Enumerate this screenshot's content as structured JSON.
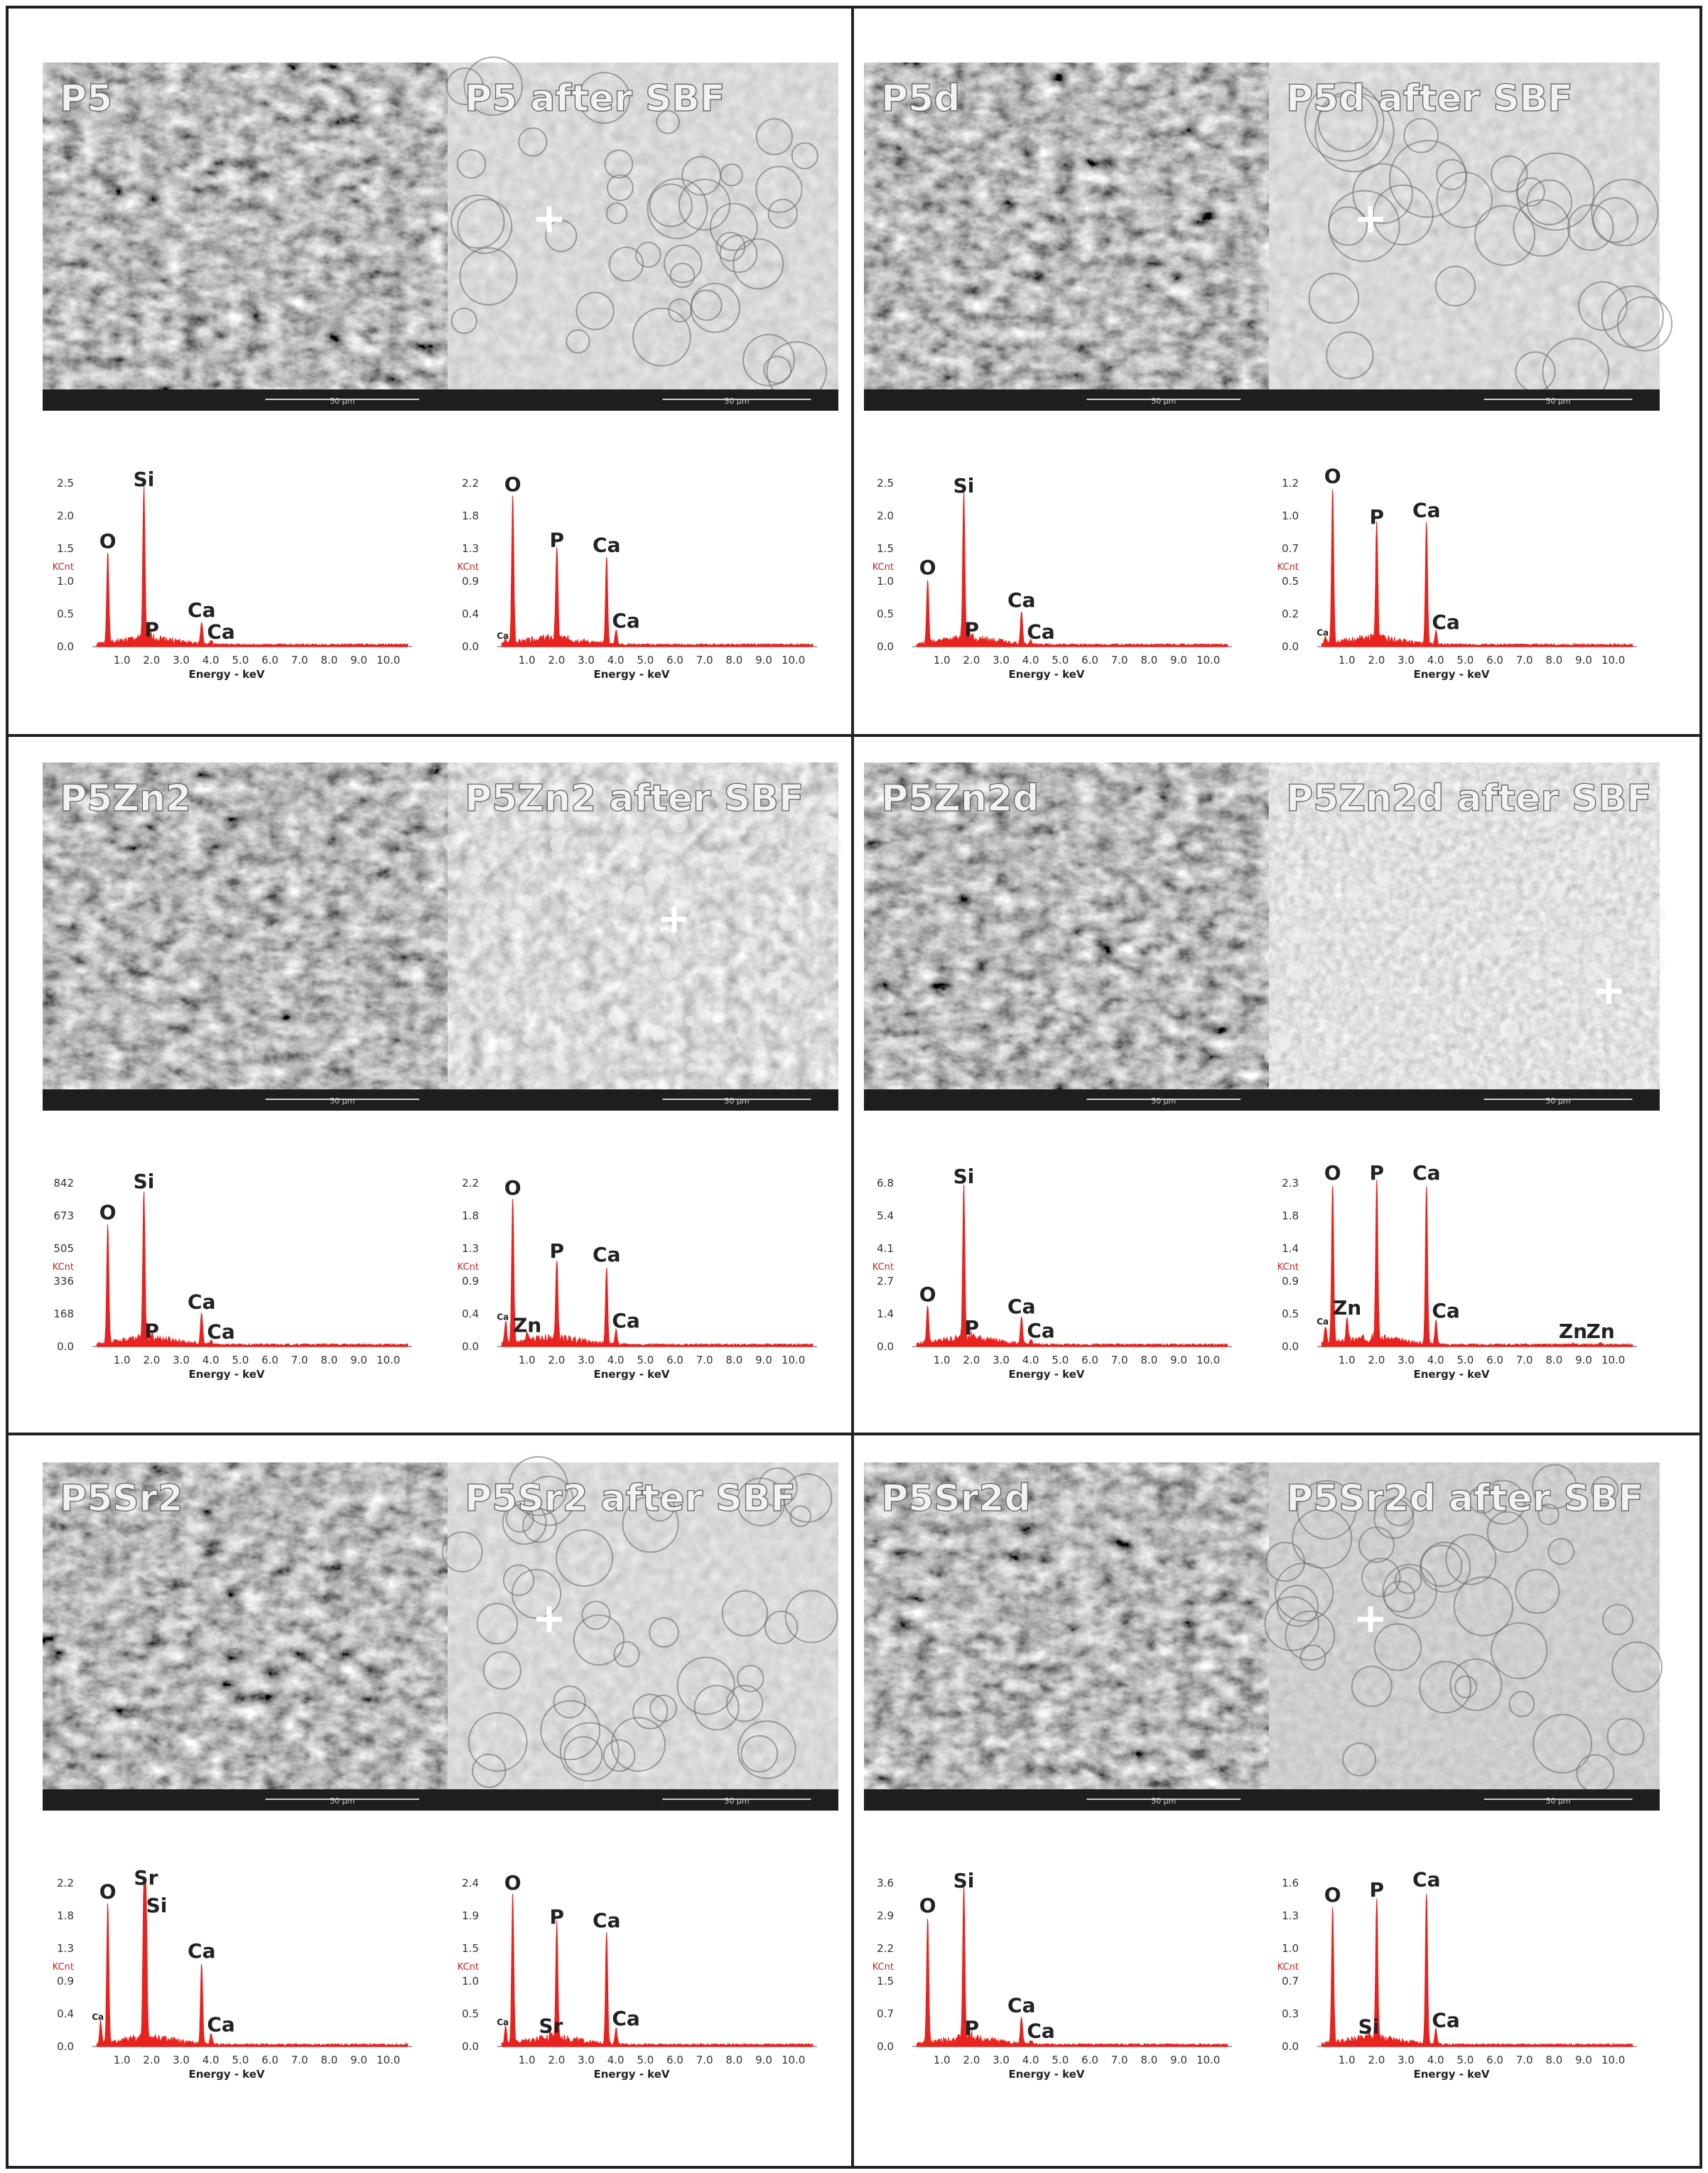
{
  "colors": {
    "spectrum": "#e8231f",
    "kcnt": "#d42020",
    "sem_label": "#f2f2f2",
    "scalebar_bg": "#1e1e1e",
    "frame": "#222222"
  },
  "scale_bar_label": "50 μm",
  "axis": {
    "xlabel": "Energy - keV",
    "ylabel": "KCnt",
    "x_ticks": [
      "1.0",
      "2.0",
      "3.0",
      "4.0",
      "5.0",
      "6.0",
      "7.0",
      "8.0",
      "9.0",
      "10.0"
    ]
  },
  "sem_images": [
    {
      "label": "P5",
      "texture": "rough",
      "plus": false
    },
    {
      "label": "P5 after SBF",
      "texture": "cells",
      "plus": true
    },
    {
      "label": "P5d",
      "texture": "rough",
      "plus": false
    },
    {
      "label": "P5d after SBF",
      "texture": "bigcells",
      "plus": true
    },
    {
      "label": "P5Zn2",
      "texture": "rough",
      "plus": false
    },
    {
      "label": "P5Zn2 after SBF",
      "texture": "bubbly",
      "plus": true
    },
    {
      "label": "P5Zn2d",
      "texture": "rough",
      "plus": false
    },
    {
      "label": "P5Zn2d after SBF",
      "texture": "spotted",
      "plus": true
    },
    {
      "label": "P5Sr2",
      "texture": "rough",
      "plus": false
    },
    {
      "label": "P5Sr2 after SBF",
      "texture": "cells",
      "plus": true
    },
    {
      "label": "P5Sr2d",
      "texture": "rough",
      "plus": false
    },
    {
      "label": "P5Sr2d after SBF",
      "texture": "faint",
      "plus": true
    }
  ],
  "chart_data": [
    {
      "type": "line",
      "sample": "P5",
      "y_ticks": [
        "0.0",
        "0.5",
        "1.0",
        "1.5",
        "2.0",
        "2.5"
      ],
      "ymax": 2.5,
      "peaks": [
        {
          "x": 0.52,
          "y": 1.4,
          "label": "O"
        },
        {
          "x": 1.74,
          "y": 2.35,
          "label": "Si"
        },
        {
          "x": 2.01,
          "y": 0.05,
          "label": "P"
        },
        {
          "x": 3.69,
          "y": 0.35,
          "label": "Ca"
        },
        {
          "x": 4.01,
          "y": 0.06,
          "label": "Ca"
        }
      ]
    },
    {
      "type": "line",
      "sample": "P5 after SBF",
      "y_ticks": [
        "0.0",
        "0.4",
        "0.9",
        "1.3",
        "1.8",
        "2.2"
      ],
      "ymax": 2.2,
      "peaks": [
        {
          "x": 0.28,
          "y": 0.05,
          "label": "Ca"
        },
        {
          "x": 0.52,
          "y": 2.0,
          "label": "O"
        },
        {
          "x": 2.01,
          "y": 1.25,
          "label": "P"
        },
        {
          "x": 3.69,
          "y": 1.18,
          "label": "Ca"
        },
        {
          "x": 4.01,
          "y": 0.2,
          "label": "Ca"
        }
      ]
    },
    {
      "type": "line",
      "sample": "P5d",
      "y_ticks": [
        "0.0",
        "0.5",
        "1.0",
        "1.5",
        "2.0",
        "2.5"
      ],
      "ymax": 2.5,
      "peaks": [
        {
          "x": 0.52,
          "y": 1.0,
          "label": "O"
        },
        {
          "x": 1.74,
          "y": 2.25,
          "label": "Si"
        },
        {
          "x": 2.01,
          "y": 0.05,
          "label": "P"
        },
        {
          "x": 3.69,
          "y": 0.5,
          "label": "Ca"
        },
        {
          "x": 4.01,
          "y": 0.06,
          "label": "Ca"
        }
      ]
    },
    {
      "type": "line",
      "sample": "P5d after SBF",
      "y_ticks": [
        "0.0",
        "0.2",
        "0.5",
        "0.7",
        "1.0",
        "1.2"
      ],
      "ymax": 1.2,
      "peaks": [
        {
          "x": 0.28,
          "y": 0.05,
          "label": "Ca"
        },
        {
          "x": 0.52,
          "y": 1.15,
          "label": "O"
        },
        {
          "x": 2.01,
          "y": 0.85,
          "label": "P"
        },
        {
          "x": 3.69,
          "y": 0.9,
          "label": "Ca"
        },
        {
          "x": 4.01,
          "y": 0.1,
          "label": "Ca"
        }
      ]
    },
    {
      "type": "line",
      "sample": "P5Zn2",
      "y_ticks": [
        "0.0",
        "168",
        "336",
        "505",
        "673",
        "842"
      ],
      "ymax": 842,
      "peaks": [
        {
          "x": 0.52,
          "y": 620,
          "label": "O"
        },
        {
          "x": 1.74,
          "y": 780,
          "label": "Si"
        },
        {
          "x": 2.01,
          "y": 10,
          "label": "P"
        },
        {
          "x": 3.69,
          "y": 160,
          "label": "Ca"
        },
        {
          "x": 4.01,
          "y": 20,
          "label": "Ca"
        }
      ]
    },
    {
      "type": "line",
      "sample": "P5Zn2 after SBF",
      "y_ticks": [
        "0.0",
        "0.4",
        "0.9",
        "1.3",
        "1.8",
        "2.2"
      ],
      "ymax": 2.2,
      "peaks": [
        {
          "x": 0.28,
          "y": 0.3,
          "label": "Ca"
        },
        {
          "x": 0.52,
          "y": 1.95,
          "label": "O"
        },
        {
          "x": 1.01,
          "y": 0.1,
          "label": "Zn"
        },
        {
          "x": 2.01,
          "y": 1.1,
          "label": "P"
        },
        {
          "x": 3.69,
          "y": 1.05,
          "label": "Ca"
        },
        {
          "x": 4.01,
          "y": 0.2,
          "label": "Ca"
        }
      ]
    },
    {
      "type": "line",
      "sample": "P5Zn2d",
      "y_ticks": [
        "0.0",
        "1.4",
        "2.7",
        "4.1",
        "5.4",
        "6.8"
      ],
      "ymax": 6.8,
      "peaks": [
        {
          "x": 0.52,
          "y": 1.6,
          "label": "O"
        },
        {
          "x": 1.74,
          "y": 6.5,
          "label": "Si"
        },
        {
          "x": 2.01,
          "y": 0.2,
          "label": "P"
        },
        {
          "x": 3.69,
          "y": 1.1,
          "label": "Ca"
        },
        {
          "x": 4.01,
          "y": 0.2,
          "label": "Ca"
        }
      ]
    },
    {
      "type": "line",
      "sample": "P5Zn2d after SBF",
      "y_ticks": [
        "0.0",
        "0.5",
        "0.9",
        "1.4",
        "1.8",
        "2.3"
      ],
      "ymax": 2.3,
      "peaks": [
        {
          "x": 0.28,
          "y": 0.25,
          "label": "Ca"
        },
        {
          "x": 0.52,
          "y": 2.25,
          "label": "O"
        },
        {
          "x": 1.01,
          "y": 0.35,
          "label": "Zn"
        },
        {
          "x": 2.01,
          "y": 2.25,
          "label": "P"
        },
        {
          "x": 3.69,
          "y": 2.25,
          "label": "Ca"
        },
        {
          "x": 4.01,
          "y": 0.35,
          "label": "Ca"
        },
        {
          "x": 8.64,
          "y": 0.02,
          "label": "Zn"
        },
        {
          "x": 9.57,
          "y": 0.02,
          "label": "Zn"
        }
      ]
    },
    {
      "type": "line",
      "sample": "P5Sr2",
      "y_ticks": [
        "0.0",
        "0.4",
        "0.9",
        "1.3",
        "1.8",
        "2.2"
      ],
      "ymax": 2.2,
      "peaks": [
        {
          "x": 0.28,
          "y": 0.3,
          "label": "Ca"
        },
        {
          "x": 0.52,
          "y": 1.9,
          "label": "O"
        },
        {
          "x": 1.74,
          "y": 2.0,
          "label": "Si"
        },
        {
          "x": 1.81,
          "y": 1.95,
          "label": "Sr"
        },
        {
          "x": 3.69,
          "y": 1.1,
          "label": "Ca"
        },
        {
          "x": 4.01,
          "y": 0.15,
          "label": "Ca"
        }
      ]
    },
    {
      "type": "line",
      "sample": "P5Sr2 after SBF",
      "y_ticks": [
        "0.0",
        "0.5",
        "1.0",
        "1.5",
        "1.9",
        "2.4"
      ],
      "ymax": 2.4,
      "peaks": [
        {
          "x": 0.28,
          "y": 0.25,
          "label": "Ca"
        },
        {
          "x": 0.52,
          "y": 2.2,
          "label": "O"
        },
        {
          "x": 1.81,
          "y": 0.1,
          "label": "Sr"
        },
        {
          "x": 2.01,
          "y": 1.7,
          "label": "P"
        },
        {
          "x": 3.69,
          "y": 1.65,
          "label": "Ca"
        },
        {
          "x": 4.01,
          "y": 0.25,
          "label": "Ca"
        }
      ]
    },
    {
      "type": "line",
      "sample": "P5Sr2d",
      "y_ticks": [
        "0.0",
        "0.7",
        "1.5",
        "2.2",
        "2.9",
        "3.6"
      ],
      "ymax": 3.6,
      "peaks": [
        {
          "x": 0.52,
          "y": 2.8,
          "label": "O"
        },
        {
          "x": 1.74,
          "y": 3.35,
          "label": "Si"
        },
        {
          "x": 2.01,
          "y": 0.1,
          "label": "P"
        },
        {
          "x": 3.69,
          "y": 0.6,
          "label": "Ca"
        },
        {
          "x": 4.01,
          "y": 0.1,
          "label": "Ca"
        }
      ]
    },
    {
      "type": "line",
      "sample": "P5Sr2d after SBF",
      "y_ticks": [
        "0.0",
        "0.3",
        "0.7",
        "1.0",
        "1.3",
        "1.6"
      ],
      "ymax": 1.6,
      "peaks": [
        {
          "x": 0.52,
          "y": 1.35,
          "label": "O"
        },
        {
          "x": 1.74,
          "y": 0.06,
          "label": "Si"
        },
        {
          "x": 2.01,
          "y": 1.4,
          "label": "P"
        },
        {
          "x": 3.69,
          "y": 1.5,
          "label": "Ca"
        },
        {
          "x": 4.01,
          "y": 0.15,
          "label": "Ca"
        }
      ]
    }
  ]
}
